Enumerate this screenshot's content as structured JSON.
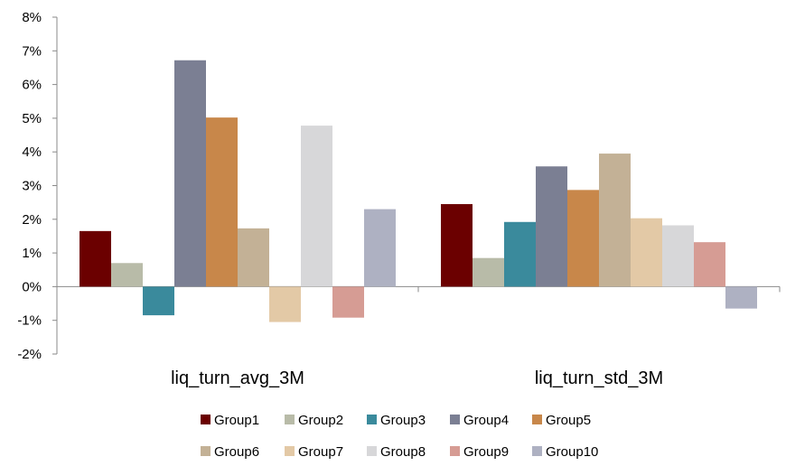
{
  "chart_data": {
    "type": "bar",
    "categories": [
      "liq_turn_avg_3M",
      "liq_turn_std_3M"
    ],
    "series": [
      {
        "name": "Group1",
        "color": "#6B0000",
        "values": [
          1.65,
          2.45
        ]
      },
      {
        "name": "Group2",
        "color": "#B8BBA8",
        "values": [
          0.7,
          0.85
        ]
      },
      {
        "name": "Group3",
        "color": "#3A8A9C",
        "values": [
          -0.85,
          1.92
        ]
      },
      {
        "name": "Group4",
        "color": "#7B7F93",
        "values": [
          6.72,
          3.57
        ]
      },
      {
        "name": "Group5",
        "color": "#C8874A",
        "values": [
          5.02,
          2.87
        ]
      },
      {
        "name": "Group6",
        "color": "#C3B196",
        "values": [
          1.73,
          3.95
        ]
      },
      {
        "name": "Group7",
        "color": "#E3C9A6",
        "values": [
          -1.05,
          2.03
        ]
      },
      {
        "name": "Group8",
        "color": "#D7D7D9",
        "values": [
          4.78,
          1.82
        ]
      },
      {
        "name": "Group9",
        "color": "#D69C94",
        "values": [
          -0.92,
          1.32
        ]
      },
      {
        "name": "Group10",
        "color": "#AEB1C2",
        "values": [
          2.3,
          -0.65
        ]
      }
    ],
    "ylim": [
      -2,
      8
    ],
    "yticks": [
      "8%",
      "7%",
      "6%",
      "5%",
      "4%",
      "3%",
      "2%",
      "1%",
      "0%",
      "-1%",
      "-2%"
    ],
    "ytick_values": [
      8,
      7,
      6,
      5,
      4,
      3,
      2,
      1,
      0,
      -1,
      -2
    ],
    "legend_position": "bottom",
    "grid": false
  }
}
